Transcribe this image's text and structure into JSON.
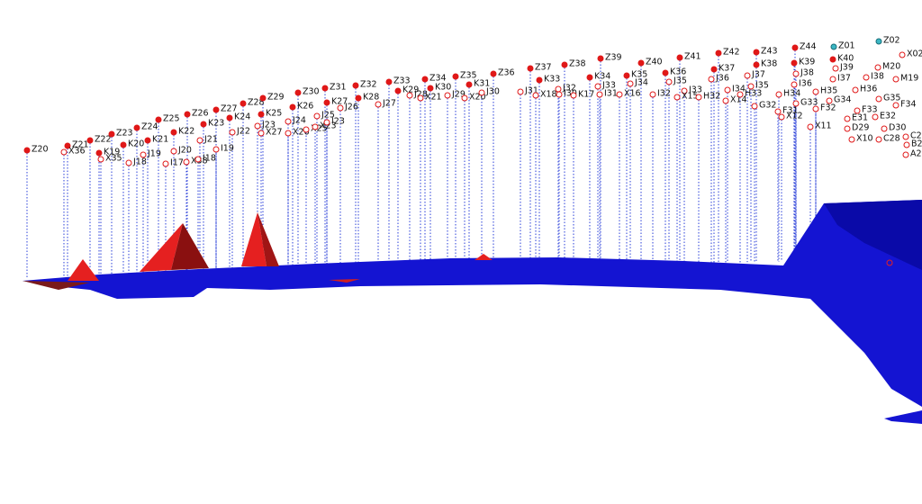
{
  "labels": [
    "Z20",
    "Z21",
    "Z22",
    "Z23",
    "Z24",
    "Z25",
    "Z26",
    "Z27",
    "Z28",
    "Z29",
    "Z30",
    "Z31",
    "Z32",
    "Z33",
    "Z34",
    "Z35",
    "Z36",
    "Z37",
    "Z38",
    "Z39",
    "Z40",
    "Z41",
    "Z42",
    "Z43",
    "Z44",
    "Z01",
    "Z02",
    "K19",
    "K20",
    "K21",
    "K22",
    "K23",
    "K24",
    "K25",
    "K26",
    "K27",
    "K28",
    "K29",
    "K30",
    "K31",
    "K33",
    "K34",
    "K35",
    "K36",
    "K37",
    "K38",
    "K39",
    "K40",
    "X36",
    "X35",
    "J18",
    "J19",
    "I17",
    "J20",
    "X38",
    "I18",
    "J21",
    "I19",
    "J22",
    "J23",
    "X27",
    "J24",
    "X26",
    "X25",
    "X23",
    "J25",
    "I23",
    "J26",
    "J27",
    "J28",
    "X21",
    "J29",
    "X20",
    "J30",
    "J31",
    "X18",
    "J32",
    "I30",
    "K17",
    "J33",
    "I31",
    "J34",
    "X16",
    "I32",
    "J35",
    "I33",
    "X15",
    "J36",
    "H32",
    "I34",
    "X14",
    "J37",
    "H33",
    "I35",
    "H34",
    "G32",
    "F31",
    "X12",
    "J38",
    "I36",
    "G33",
    "F32",
    "H35",
    "X11",
    "J39",
    "I37",
    "G34",
    "X02",
    "M20",
    "I38",
    "H36",
    "M19",
    "G35",
    "F33",
    "F34",
    "E31",
    "E32",
    "D29",
    "D30",
    "X10",
    "C28",
    "C2",
    "B2",
    "A2"
  ]
}
